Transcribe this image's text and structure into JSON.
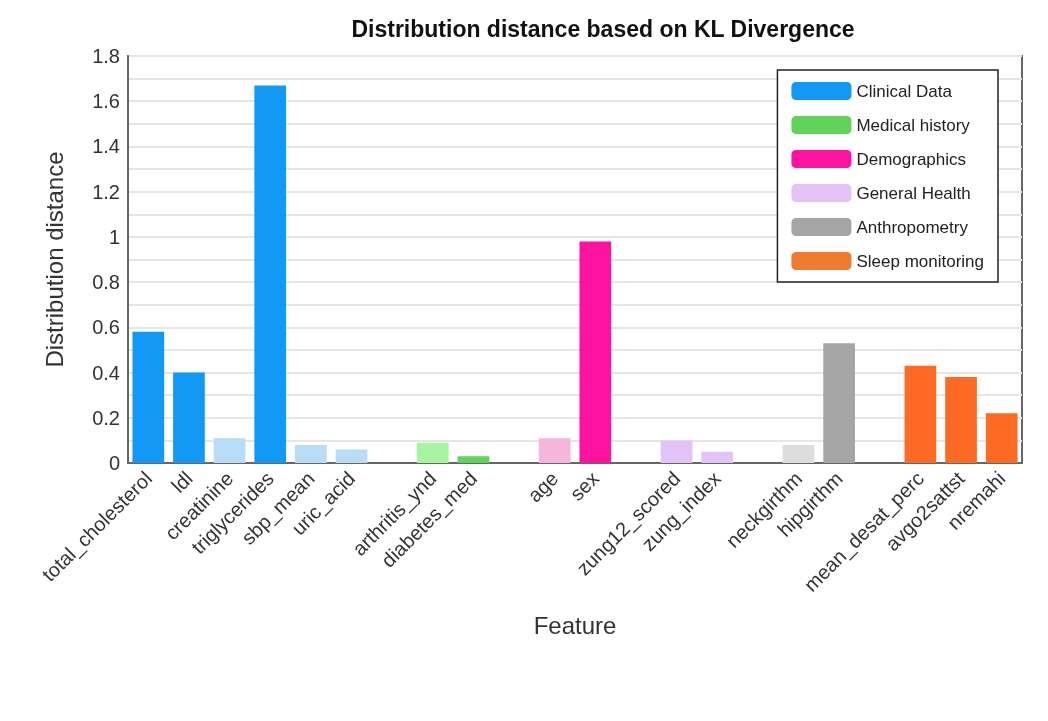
{
  "chart_data": {
    "type": "bar",
    "title": "Distribution distance based on KL Divergence",
    "xlabel": "Feature",
    "ylabel": "Distribution distance",
    "categories": [
      "total_cholesterol",
      "ldl",
      "creatinine",
      "triglycerides",
      "sbp_mean",
      "uric_acid",
      null,
      "arthritis_ynd",
      "diabetes_med",
      null,
      "age",
      "sex",
      null,
      "zung12_scored",
      "zung_index",
      null,
      "neckgirthm",
      "hipgirthm",
      null,
      "mean_desat_perc",
      "avgo2sattst",
      "nremahi"
    ],
    "series": [
      {
        "name": "Clinical Data",
        "color": "#1199f5",
        "colors": [
          "#1199f5",
          "#1199f5",
          "#b9dcf7",
          "#1199f5",
          "#b9dcf7",
          "#b9dcf7",
          null,
          null,
          null,
          null,
          null,
          null,
          null,
          null,
          null,
          null,
          null,
          null,
          null,
          null,
          null,
          null
        ],
        "values": [
          0.58,
          0.4,
          0.11,
          1.67,
          0.08,
          0.06,
          null,
          null,
          null,
          null,
          null,
          null,
          null,
          null,
          null,
          null,
          null,
          null,
          null,
          null,
          null,
          null
        ]
      },
      {
        "name": "Medical history",
        "color": "#5fd35a",
        "colors": [
          null,
          null,
          null,
          null,
          null,
          null,
          null,
          "#a6f5a0",
          "#5fd35a",
          null,
          null,
          null,
          null,
          null,
          null,
          null,
          null,
          null,
          null,
          null,
          null,
          null
        ],
        "values": [
          null,
          null,
          null,
          null,
          null,
          null,
          null,
          0.09,
          0.03,
          null,
          null,
          null,
          null,
          null,
          null,
          null,
          null,
          null,
          null,
          null,
          null,
          null
        ]
      },
      {
        "name": "Demographics",
        "color": "#fc14a0",
        "colors": [
          null,
          null,
          null,
          null,
          null,
          null,
          null,
          null,
          null,
          null,
          "#f7b5dd",
          "#fc14a0",
          null,
          null,
          null,
          null,
          null,
          null,
          null,
          null,
          null,
          null
        ],
        "values": [
          null,
          null,
          null,
          null,
          null,
          null,
          null,
          null,
          null,
          null,
          0.11,
          0.98,
          null,
          null,
          null,
          null,
          null,
          null,
          null,
          null,
          null,
          null
        ]
      },
      {
        "name": "General Health",
        "color": "#e3c2f8",
        "colors": [
          null,
          null,
          null,
          null,
          null,
          null,
          null,
          null,
          null,
          null,
          null,
          null,
          null,
          "#e3c2f8",
          "#e3c2f8",
          null,
          null,
          null,
          null,
          null,
          null,
          null
        ],
        "values": [
          null,
          null,
          null,
          null,
          null,
          null,
          null,
          null,
          null,
          null,
          null,
          null,
          null,
          0.1,
          0.05,
          null,
          null,
          null,
          null,
          null,
          null,
          null
        ]
      },
      {
        "name": "Anthropometry",
        "color": "#a5a5a5",
        "colors": [
          null,
          null,
          null,
          null,
          null,
          null,
          null,
          null,
          null,
          null,
          null,
          null,
          null,
          null,
          null,
          null,
          "#dddddd",
          "#a5a5a5",
          null,
          null,
          null,
          null
        ],
        "values": [
          null,
          null,
          null,
          null,
          null,
          null,
          null,
          null,
          null,
          null,
          null,
          null,
          null,
          null,
          null,
          null,
          0.08,
          0.53,
          null,
          null,
          null,
          null
        ]
      },
      {
        "name": "Sleep monitoring",
        "color": "#f07a30",
        "colors": [
          null,
          null,
          null,
          null,
          null,
          null,
          null,
          null,
          null,
          null,
          null,
          null,
          null,
          null,
          null,
          null,
          null,
          null,
          null,
          "#fc6a24",
          "#fc6a24",
          "#fc6a24"
        ],
        "values": [
          null,
          null,
          null,
          null,
          null,
          null,
          null,
          null,
          null,
          null,
          null,
          null,
          null,
          null,
          null,
          null,
          null,
          null,
          null,
          0.43,
          0.38,
          0.22
        ]
      }
    ],
    "ylim": [
      0,
      1.8
    ],
    "yticks": [
      0,
      {
        "value": 0.1,
        "label": null
      },
      0.2,
      {
        "value": 0.3,
        "label": null
      },
      0.4,
      {
        "value": 0.5,
        "label": null
      },
      0.6,
      {
        "value": 0.7,
        "label": null
      },
      0.8,
      {
        "value": 0.9,
        "label": null
      },
      1,
      {
        "value": 1.1,
        "label": null
      },
      1.2,
      {
        "value": 1.3,
        "label": null
      },
      1.4,
      {
        "value": 1.5,
        "label": null
      },
      1.6,
      {
        "value": 1.7,
        "label": null
      },
      1.8
    ],
    "grid": "y",
    "legend": "top right"
  }
}
